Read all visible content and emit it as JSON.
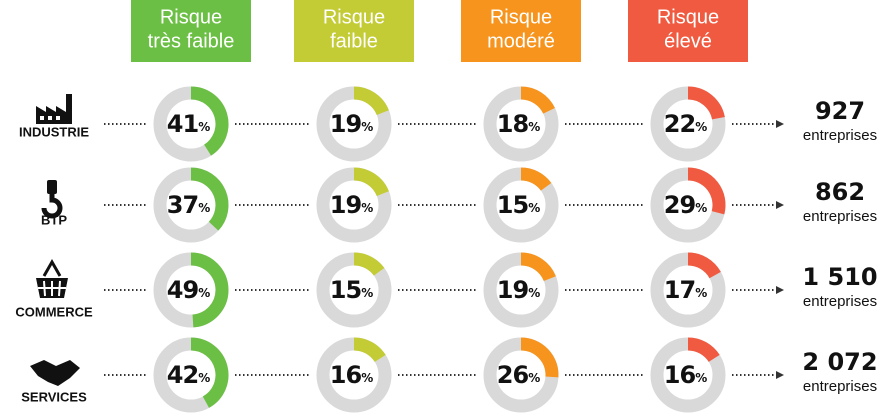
{
  "unit": "%",
  "columns": [
    {
      "header": [
        "Risque",
        "très faible"
      ],
      "color": "#6cbf45"
    },
    {
      "header": [
        "Risque",
        "faible"
      ],
      "color": "#c3cb35"
    },
    {
      "header": [
        "Risque",
        "modéré"
      ],
      "color": "#f7941d"
    },
    {
      "header": [
        "Risque",
        "élevé"
      ],
      "color": "#f05a40"
    }
  ],
  "rows": [
    {
      "label": "INDUSTRIE",
      "values": [
        41,
        19,
        18,
        22
      ],
      "total": "927",
      "total_unit": "entreprises"
    },
    {
      "label": "BTP",
      "values": [
        37,
        19,
        15,
        29
      ],
      "total": "862",
      "total_unit": "entreprises"
    },
    {
      "label": "COMMERCE",
      "values": [
        49,
        15,
        19,
        17
      ],
      "total": "1 510",
      "total_unit": "entreprises"
    },
    {
      "label": "SERVICES",
      "values": [
        42,
        16,
        26,
        16
      ],
      "total": "2 072",
      "total_unit": "entreprises"
    }
  ]
}
